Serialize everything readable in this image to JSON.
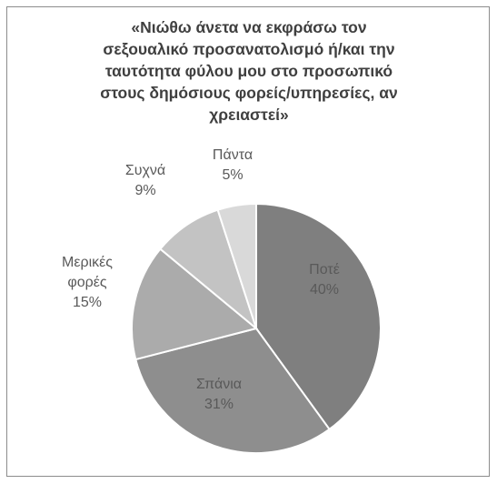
{
  "chart_data": {
    "type": "pie",
    "title_lines": [
      "«Νιώθω άνετα να εκφράσω τον",
      "σεξουαλικό προσανατολισμό ή/και την",
      "ταυτότητα φύλου μου στο προσωπικό",
      "στους δημόσιους φορείς/υπηρεσίες, αν",
      "χρειαστεί»"
    ],
    "slices": [
      {
        "label": "Ποτέ",
        "label_lines": [
          "Ποτέ"
        ],
        "value": 40,
        "percent_label": "40%",
        "color": "#7f7f7f",
        "label_color": "#595959"
      },
      {
        "label": "Σπάνια",
        "label_lines": [
          "Σπάνια"
        ],
        "value": 31,
        "percent_label": "31%",
        "color": "#8e8e8e",
        "label_color": "#595959"
      },
      {
        "label": "Μερικές φορές",
        "label_lines": [
          "Μερικές",
          "φορές"
        ],
        "value": 15,
        "percent_label": "15%",
        "color": "#ababab",
        "label_color": "#595959"
      },
      {
        "label": "Συχνά",
        "label_lines": [
          "Συχνά"
        ],
        "value": 9,
        "percent_label": "9%",
        "color": "#c3c3c3",
        "label_color": "#595959"
      },
      {
        "label": "Πάντα",
        "label_lines": [
          "Πάντα"
        ],
        "value": 5,
        "percent_label": "5%",
        "color": "#d9d9d9",
        "label_color": "#595959"
      }
    ],
    "legend": "none",
    "start_angle": "12 o'clock",
    "direction": "clockwise"
  }
}
